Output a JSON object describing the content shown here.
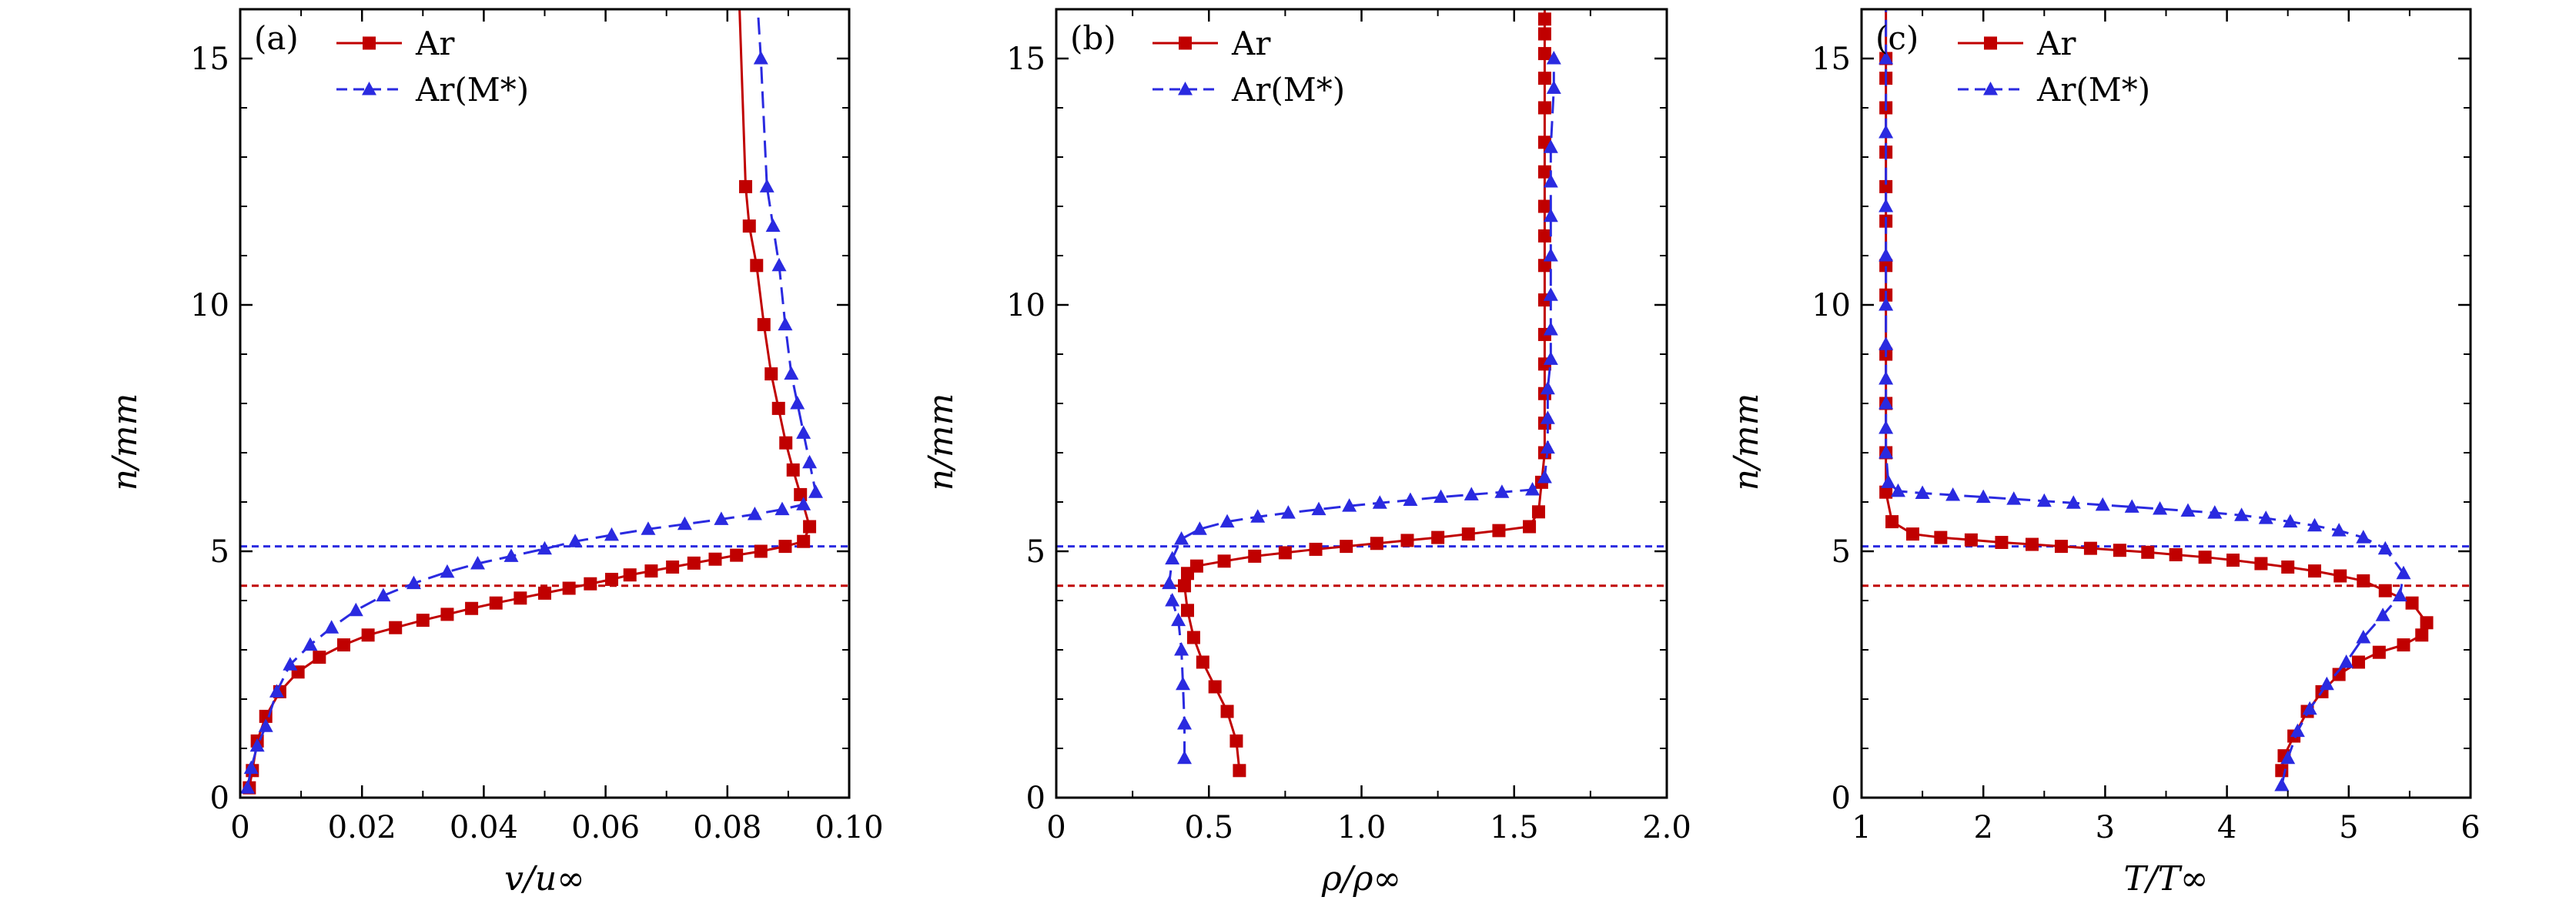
{
  "chart_data": [
    {
      "panel": "(a)",
      "type": "line",
      "xlabel": "v/u∞",
      "ylabel": "n/mm",
      "xlim": [
        0,
        0.1
      ],
      "ylim": [
        0,
        16
      ],
      "xticks": [
        0,
        0.02,
        0.04,
        0.06,
        0.08,
        0.1
      ],
      "xtick_labels": [
        "0",
        "0.02",
        "0.04",
        "0.06",
        "0.08",
        "0.10"
      ],
      "yticks": [
        0,
        5,
        10,
        15
      ],
      "ytick_labels": [
        "0",
        "5",
        "10",
        "15"
      ],
      "legend_position": "top-left",
      "reference_lines": [
        {
          "name": "Ar shock",
          "y": 4.3,
          "color": "#c00000"
        },
        {
          "name": "Ar(M*) shock",
          "y": 5.1,
          "color": "#2a2ae0"
        }
      ],
      "series": [
        {
          "name": "Ar",
          "color": "#c00000",
          "marker": "square",
          "dash": "solid",
          "x": [
            0.0015,
            0.002,
            0.0028,
            0.0042,
            0.0065,
            0.0095,
            0.013,
            0.017,
            0.021,
            0.0255,
            0.03,
            0.034,
            0.038,
            0.042,
            0.046,
            0.05,
            0.054,
            0.0575,
            0.061,
            0.064,
            0.0675,
            0.071,
            0.0745,
            0.078,
            0.0815,
            0.0855,
            0.0895,
            0.0925,
            0.0935,
            0.092,
            0.0908,
            0.0896,
            0.0884,
            0.0872,
            0.086,
            0.0848,
            0.0836,
            0.083,
            0.082
          ],
          "y": [
            0.2,
            0.55,
            1.15,
            1.65,
            2.15,
            2.55,
            2.85,
            3.1,
            3.3,
            3.45,
            3.6,
            3.72,
            3.84,
            3.95,
            4.05,
            4.15,
            4.25,
            4.34,
            4.43,
            4.52,
            4.6,
            4.68,
            4.76,
            4.84,
            4.92,
            5.0,
            5.1,
            5.2,
            5.5,
            6.15,
            6.65,
            7.2,
            7.9,
            8.6,
            9.6,
            10.8,
            11.6,
            12.4,
            16.0
          ]
        },
        {
          "name": "Ar(M*)",
          "color": "#2a2ae0",
          "marker": "triangle",
          "dash": "dashed",
          "x": [
            0.0012,
            0.0018,
            0.0028,
            0.0042,
            0.006,
            0.0082,
            0.0115,
            0.015,
            0.019,
            0.0235,
            0.0285,
            0.034,
            0.039,
            0.0445,
            0.05,
            0.055,
            0.061,
            0.067,
            0.073,
            0.079,
            0.0845,
            0.089,
            0.0925,
            0.0945,
            0.0935,
            0.0925,
            0.0915,
            0.0905,
            0.0895,
            0.0885,
            0.0875,
            0.0865,
            0.0855,
            0.085
          ],
          "y": [
            0.2,
            0.6,
            1.05,
            1.45,
            2.15,
            2.7,
            3.1,
            3.45,
            3.8,
            4.1,
            4.35,
            4.58,
            4.75,
            4.9,
            5.05,
            5.2,
            5.33,
            5.45,
            5.55,
            5.65,
            5.75,
            5.85,
            5.95,
            6.2,
            6.8,
            7.4,
            8.0,
            8.6,
            9.6,
            10.8,
            11.6,
            12.4,
            15.0,
            16.0
          ]
        }
      ]
    },
    {
      "panel": "(b)",
      "type": "line",
      "xlabel": "ρ/ρ∞",
      "ylabel": "n/mm",
      "xlim": [
        0,
        2.0
      ],
      "ylim": [
        0,
        16
      ],
      "xticks": [
        0,
        0.5,
        1.0,
        1.5,
        2.0
      ],
      "xtick_labels": [
        "0",
        "0.5",
        "1.0",
        "1.5",
        "2.0"
      ],
      "yticks": [
        0,
        5,
        10,
        15
      ],
      "ytick_labels": [
        "0",
        "5",
        "10",
        "15"
      ],
      "legend_position": "top-left",
      "reference_lines": [
        {
          "name": "Ar shock",
          "y": 4.3,
          "color": "#c00000"
        },
        {
          "name": "Ar(M*) shock",
          "y": 5.1,
          "color": "#2a2ae0"
        }
      ],
      "series": [
        {
          "name": "Ar",
          "color": "#c00000",
          "marker": "square",
          "dash": "solid",
          "x": [
            0.6,
            0.59,
            0.56,
            0.52,
            0.48,
            0.45,
            0.43,
            0.42,
            0.43,
            0.46,
            0.55,
            0.65,
            0.75,
            0.85,
            0.95,
            1.05,
            1.15,
            1.25,
            1.35,
            1.45,
            1.55,
            1.58,
            1.59,
            1.6,
            1.6,
            1.6,
            1.6,
            1.6,
            1.6,
            1.6,
            1.6,
            1.6,
            1.6,
            1.6,
            1.6,
            1.6,
            1.6,
            1.6,
            1.6,
            1.6
          ],
          "y": [
            0.55,
            1.15,
            1.75,
            2.25,
            2.75,
            3.25,
            3.8,
            4.3,
            4.55,
            4.7,
            4.8,
            4.9,
            4.97,
            5.04,
            5.1,
            5.16,
            5.22,
            5.28,
            5.35,
            5.42,
            5.5,
            5.8,
            6.4,
            7.0,
            7.6,
            8.2,
            8.8,
            9.4,
            10.1,
            10.8,
            11.4,
            12.0,
            12.7,
            13.3,
            14.0,
            14.6,
            15.1,
            15.5,
            15.8,
            16.0
          ]
        },
        {
          "name": "Ar(M*)",
          "color": "#2a2ae0",
          "marker": "triangle",
          "dash": "dashed",
          "x": [
            0.42,
            0.42,
            0.415,
            0.41,
            0.4,
            0.38,
            0.37,
            0.38,
            0.41,
            0.47,
            0.56,
            0.66,
            0.76,
            0.86,
            0.96,
            1.06,
            1.16,
            1.26,
            1.36,
            1.46,
            1.56,
            1.6,
            1.61,
            1.61,
            1.61,
            1.62,
            1.62,
            1.62,
            1.62,
            1.62,
            1.62,
            1.62,
            1.63,
            1.63
          ],
          "y": [
            0.8,
            1.5,
            2.3,
            3.0,
            3.6,
            4.0,
            4.35,
            4.85,
            5.25,
            5.45,
            5.6,
            5.7,
            5.78,
            5.85,
            5.92,
            5.98,
            6.04,
            6.1,
            6.15,
            6.2,
            6.25,
            6.5,
            7.1,
            7.7,
            8.3,
            8.9,
            9.5,
            10.2,
            11.0,
            11.8,
            12.5,
            13.2,
            14.4,
            15.0
          ]
        }
      ]
    },
    {
      "panel": "(c)",
      "type": "line",
      "xlabel": "T/T∞",
      "ylabel": "n/mm",
      "xlim": [
        1,
        6
      ],
      "ylim": [
        0,
        16
      ],
      "xticks": [
        1,
        2,
        3,
        4,
        5,
        6
      ],
      "xtick_labels": [
        "1",
        "2",
        "3",
        "4",
        "5",
        "6"
      ],
      "yticks": [
        0,
        5,
        10,
        15
      ],
      "ytick_labels": [
        "0",
        "5",
        "10",
        "15"
      ],
      "legend_position": "top-left",
      "reference_lines": [
        {
          "name": "Ar shock",
          "y": 4.3,
          "color": "#c00000"
        },
        {
          "name": "Ar(M*) shock",
          "y": 5.1,
          "color": "#2a2ae0"
        }
      ],
      "series": [
        {
          "name": "Ar",
          "color": "#c00000",
          "marker": "square",
          "dash": "solid",
          "x": [
            4.45,
            4.47,
            4.55,
            4.66,
            4.78,
            4.92,
            5.08,
            5.25,
            5.45,
            5.6,
            5.64,
            5.52,
            5.3,
            5.12,
            4.93,
            4.72,
            4.5,
            4.28,
            4.05,
            3.82,
            3.58,
            3.35,
            3.12,
            2.88,
            2.64,
            2.4,
            2.15,
            1.9,
            1.65,
            1.42,
            1.25,
            1.2,
            1.2,
            1.2,
            1.2,
            1.2,
            1.2,
            1.2,
            1.2,
            1.2,
            1.2,
            1.2,
            1.2,
            1.2
          ],
          "y": [
            0.55,
            0.85,
            1.25,
            1.75,
            2.15,
            2.5,
            2.75,
            2.95,
            3.1,
            3.3,
            3.55,
            3.95,
            4.2,
            4.4,
            4.5,
            4.6,
            4.68,
            4.75,
            4.82,
            4.88,
            4.93,
            4.98,
            5.02,
            5.06,
            5.1,
            5.14,
            5.18,
            5.23,
            5.28,
            5.35,
            5.6,
            6.2,
            7.0,
            8.0,
            9.0,
            10.2,
            10.8,
            11.7,
            12.4,
            13.1,
            14.0,
            14.6,
            15.0,
            16.0
          ]
        },
        {
          "name": "Ar(M*)",
          "color": "#2a2ae0",
          "marker": "triangle",
          "dash": "dashed",
          "x": [
            4.45,
            4.5,
            4.58,
            4.68,
            4.82,
            4.98,
            5.12,
            5.28,
            5.42,
            5.45,
            5.3,
            5.12,
            4.92,
            4.72,
            4.52,
            4.32,
            4.12,
            3.9,
            3.68,
            3.45,
            3.22,
            2.98,
            2.74,
            2.5,
            2.25,
            2.0,
            1.75,
            1.5,
            1.3,
            1.22,
            1.2,
            1.2,
            1.2,
            1.2,
            1.2,
            1.2,
            1.2,
            1.2,
            1.2,
            1.2,
            1.2
          ],
          "y": [
            0.25,
            0.8,
            1.35,
            1.8,
            2.3,
            2.75,
            3.25,
            3.7,
            4.1,
            4.55,
            5.05,
            5.28,
            5.42,
            5.52,
            5.6,
            5.67,
            5.73,
            5.78,
            5.82,
            5.86,
            5.9,
            5.94,
            5.98,
            6.02,
            6.06,
            6.1,
            6.14,
            6.18,
            6.22,
            6.4,
            7.0,
            7.5,
            8.0,
            8.5,
            9.2,
            10.0,
            11.0,
            12.0,
            13.5,
            15.0,
            16.0
          ]
        }
      ]
    }
  ]
}
